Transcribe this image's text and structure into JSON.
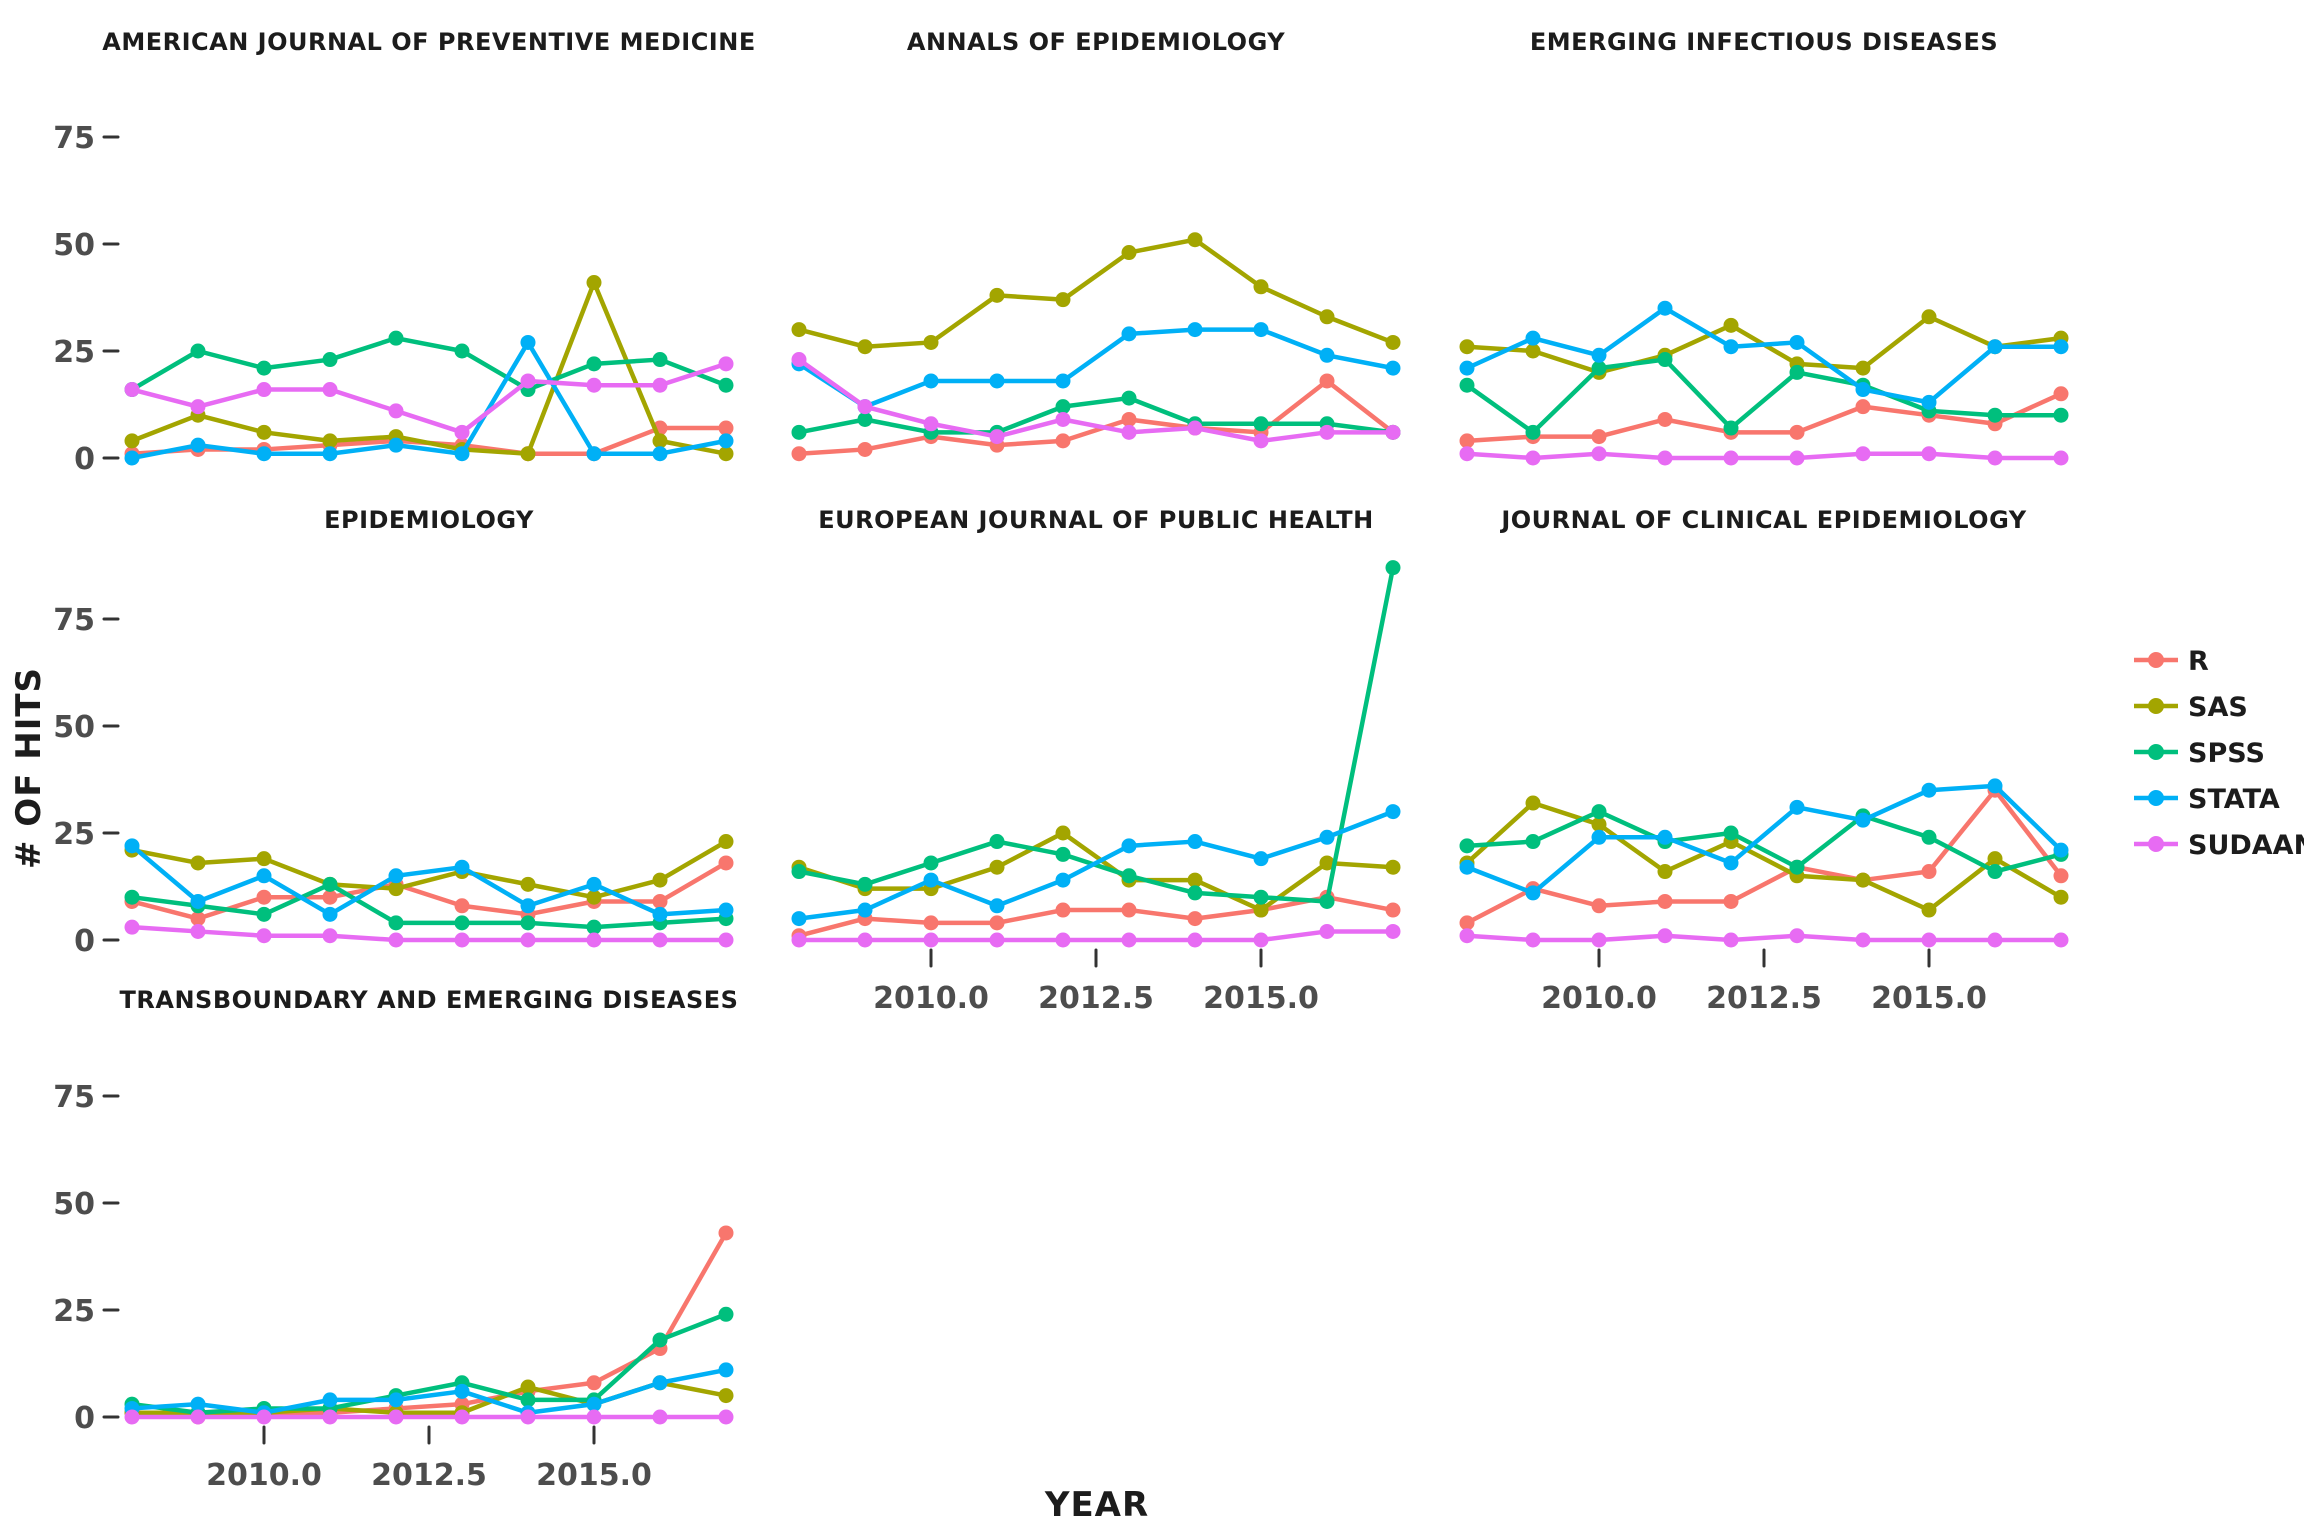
{
  "axes": {
    "x_label": "YEAR",
    "y_label": "# OF HITS",
    "y_tick_labels": [
      "0",
      "25",
      "50",
      "75"
    ],
    "y_tick_values": [
      0,
      25,
      50,
      75
    ],
    "x_tick_labels": [
      "2010.0",
      "2012.5",
      "2015.0"
    ],
    "x_tick_values": [
      2010.0,
      2012.5,
      2015.0
    ]
  },
  "legend": {
    "position": "right",
    "entries": [
      {
        "label": "R",
        "color": "#F8766D"
      },
      {
        "label": "SAS",
        "color": "#A3A500"
      },
      {
        "label": "SPSS",
        "color": "#00BF7D"
      },
      {
        "label": "STATA",
        "color": "#00B0F6"
      },
      {
        "label": "SUDAAN",
        "color": "#E76BF3"
      }
    ]
  },
  "chart_data": {
    "type": "line",
    "style": "xkcd-faceted-small-multiples",
    "title": "",
    "xlabel": "YEAR",
    "ylabel": "# OF HITS",
    "x": [
      2008,
      2009,
      2010,
      2011,
      2012,
      2013,
      2014,
      2015,
      2016,
      2017
    ],
    "ylim": [
      0,
      90
    ],
    "y_ticks": [
      0,
      25,
      50,
      75
    ],
    "x_ticks": [
      2010.0,
      2012.5,
      2015.0
    ],
    "grid": false,
    "markers": true,
    "legend_position": "right",
    "series_order": [
      "R",
      "SAS",
      "SPSS",
      "STATA",
      "SUDAAN"
    ],
    "colors": {
      "R": "#F8766D",
      "SAS": "#A3A500",
      "SPSS": "#00BF7D",
      "STATA": "#00B0F6",
      "SUDAAN": "#E76BF3"
    },
    "facets": [
      {
        "title": "AMERICAN JOURNAL OF PREVENTIVE MEDICINE",
        "slug": "american-journal-of-preventive-medicine",
        "grid_row": 0,
        "grid_col": 0,
        "show_x_axis": false,
        "show_y_axis": true,
        "series": [
          {
            "name": "R",
            "values": [
              1,
              2,
              2,
              3,
              4,
              3,
              1,
              1,
              7,
              7
            ]
          },
          {
            "name": "SAS",
            "values": [
              4,
              10,
              6,
              4,
              5,
              2,
              1,
              41,
              4,
              1
            ]
          },
          {
            "name": "SPSS",
            "values": [
              16,
              25,
              21,
              23,
              28,
              25,
              16,
              22,
              23,
              17
            ]
          },
          {
            "name": "STATA",
            "values": [
              0,
              3,
              1,
              1,
              3,
              1,
              27,
              1,
              1,
              4
            ]
          },
          {
            "name": "SUDAAN",
            "values": [
              16,
              12,
              16,
              16,
              11,
              6,
              18,
              17,
              17,
              22
            ]
          }
        ]
      },
      {
        "title": "ANNALS OF EPIDEMIOLOGY",
        "slug": "annals-of-epidemiology",
        "grid_row": 0,
        "grid_col": 1,
        "show_x_axis": false,
        "show_y_axis": false,
        "series": [
          {
            "name": "R",
            "values": [
              1,
              2,
              5,
              3,
              4,
              9,
              7,
              6,
              18,
              6
            ]
          },
          {
            "name": "SAS",
            "values": [
              30,
              26,
              27,
              38,
              37,
              48,
              51,
              40,
              33,
              27
            ]
          },
          {
            "name": "SPSS",
            "values": [
              6,
              9,
              6,
              6,
              12,
              14,
              8,
              8,
              8,
              6
            ]
          },
          {
            "name": "STATA",
            "values": [
              22,
              12,
              18,
              18,
              18,
              29,
              30,
              30,
              24,
              21
            ]
          },
          {
            "name": "SUDAAN",
            "values": [
              23,
              12,
              8,
              5,
              9,
              6,
              7,
              4,
              6,
              6
            ]
          }
        ]
      },
      {
        "title": "EMERGING INFECTIOUS DISEASES",
        "slug": "emerging-infectious-diseases",
        "grid_row": 0,
        "grid_col": 2,
        "show_x_axis": false,
        "show_y_axis": false,
        "series": [
          {
            "name": "R",
            "values": [
              4,
              5,
              5,
              9,
              6,
              6,
              12,
              10,
              8,
              15
            ]
          },
          {
            "name": "SAS",
            "values": [
              26,
              25,
              20,
              24,
              31,
              22,
              21,
              33,
              26,
              28
            ]
          },
          {
            "name": "SPSS",
            "values": [
              17,
              6,
              21,
              23,
              7,
              20,
              17,
              11,
              10,
              10
            ]
          },
          {
            "name": "STATA",
            "values": [
              21,
              28,
              24,
              35,
              26,
              27,
              16,
              13,
              26,
              26
            ]
          },
          {
            "name": "SUDAAN",
            "values": [
              1,
              0,
              1,
              0,
              0,
              0,
              1,
              1,
              0,
              0
            ]
          }
        ]
      },
      {
        "title": "EPIDEMIOLOGY",
        "slug": "epidemiology",
        "grid_row": 1,
        "grid_col": 0,
        "show_x_axis": false,
        "show_y_axis": true,
        "series": [
          {
            "name": "R",
            "values": [
              9,
              5,
              10,
              10,
              13,
              8,
              6,
              9,
              9,
              18
            ]
          },
          {
            "name": "SAS",
            "values": [
              21,
              18,
              19,
              13,
              12,
              16,
              13,
              10,
              14,
              23
            ]
          },
          {
            "name": "SPSS",
            "values": [
              10,
              8,
              6,
              13,
              4,
              4,
              4,
              3,
              4,
              5
            ]
          },
          {
            "name": "STATA",
            "values": [
              22,
              9,
              15,
              6,
              15,
              17,
              8,
              13,
              6,
              7
            ]
          },
          {
            "name": "SUDAAN",
            "values": [
              3,
              2,
              1,
              1,
              0,
              0,
              0,
              0,
              0,
              0
            ]
          }
        ]
      },
      {
        "title": "EUROPEAN JOURNAL OF PUBLIC HEALTH",
        "slug": "european-journal-of-public-health",
        "grid_row": 1,
        "grid_col": 1,
        "show_x_axis": true,
        "show_y_axis": false,
        "series": [
          {
            "name": "R",
            "values": [
              1,
              5,
              4,
              4,
              7,
              7,
              5,
              7,
              10,
              7
            ]
          },
          {
            "name": "SAS",
            "values": [
              17,
              12,
              12,
              17,
              25,
              14,
              14,
              7,
              18,
              17
            ]
          },
          {
            "name": "SPSS",
            "values": [
              16,
              13,
              18,
              23,
              20,
              15,
              11,
              10,
              9,
              87
            ]
          },
          {
            "name": "STATA",
            "values": [
              5,
              7,
              14,
              8,
              14,
              22,
              23,
              19,
              24,
              30
            ]
          },
          {
            "name": "SUDAAN",
            "values": [
              0,
              0,
              0,
              0,
              0,
              0,
              0,
              0,
              2,
              2
            ]
          }
        ]
      },
      {
        "title": "JOURNAL OF CLINICAL EPIDEMIOLOGY",
        "slug": "journal-of-clinical-epidemiology",
        "grid_row": 1,
        "grid_col": 2,
        "show_x_axis": true,
        "show_y_axis": false,
        "series": [
          {
            "name": "R",
            "values": [
              4,
              12,
              8,
              9,
              9,
              17,
              14,
              16,
              35,
              15
            ]
          },
          {
            "name": "SAS",
            "values": [
              18,
              32,
              27,
              16,
              23,
              15,
              14,
              7,
              19,
              10
            ]
          },
          {
            "name": "SPSS",
            "values": [
              22,
              23,
              30,
              23,
              25,
              17,
              29,
              24,
              16,
              20
            ]
          },
          {
            "name": "STATA",
            "values": [
              17,
              11,
              24,
              24,
              18,
              31,
              28,
              35,
              36,
              21
            ]
          },
          {
            "name": "SUDAAN",
            "values": [
              1,
              0,
              0,
              1,
              0,
              1,
              0,
              0,
              0,
              0
            ]
          }
        ]
      },
      {
        "title": "TRANSBOUNDARY AND EMERGING DISEASES",
        "slug": "transboundary-and-emerging-diseases",
        "grid_row": 2,
        "grid_col": 0,
        "show_x_axis": true,
        "show_y_axis": true,
        "series": [
          {
            "name": "R",
            "values": [
              1,
              0,
              1,
              1,
              2,
              3,
              6,
              8,
              16,
              43
            ]
          },
          {
            "name": "SAS",
            "values": [
              1,
              1,
              1,
              2,
              1,
              1,
              7,
              3,
              8,
              5
            ]
          },
          {
            "name": "SPSS",
            "values": [
              3,
              1,
              2,
              2,
              5,
              8,
              4,
              4,
              18,
              24
            ]
          },
          {
            "name": "STATA",
            "values": [
              2,
              3,
              1,
              4,
              4,
              6,
              1,
              3,
              8,
              11
            ]
          },
          {
            "name": "SUDAAN",
            "values": [
              0,
              0,
              0,
              0,
              0,
              0,
              0,
              0,
              0,
              0
            ]
          }
        ]
      }
    ]
  }
}
